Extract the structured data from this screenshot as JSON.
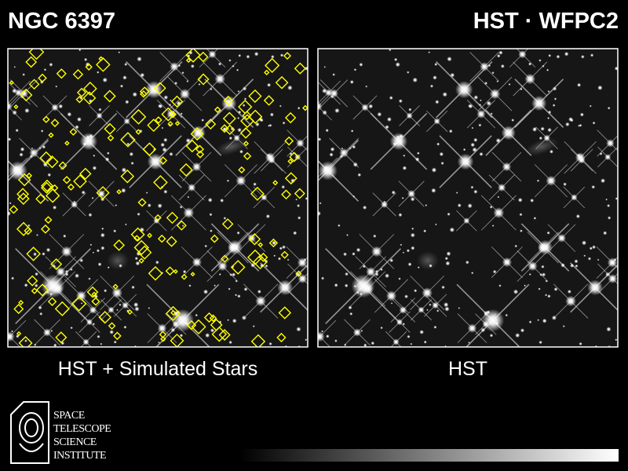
{
  "header": {
    "title": "NGC 6397",
    "subtitle": "HST · WFPC2"
  },
  "panels": [
    {
      "caption": "HST + Simulated Stars"
    },
    {
      "caption": "HST"
    }
  ],
  "logo": {
    "lines": [
      "SPACE",
      "TELESCOPE",
      "SCIENCE",
      "INSTITUTE"
    ]
  }
}
